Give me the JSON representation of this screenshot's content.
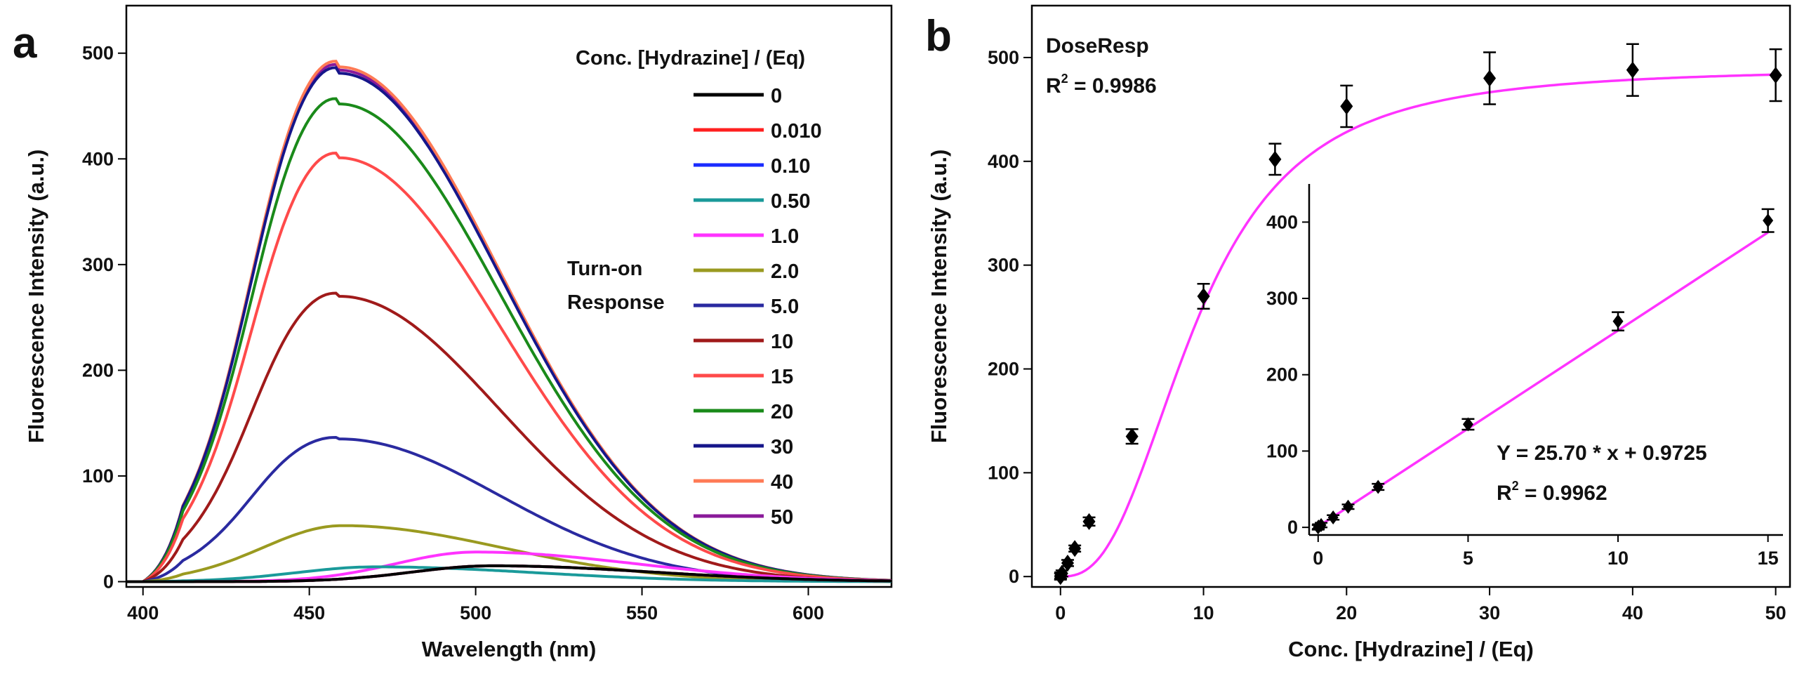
{
  "chart_data": [
    {
      "panel": "a",
      "type": "line",
      "xlabel": "Wavelength (nm)",
      "ylabel": "Fluorescence Intensity (a.u.)",
      "xlim": [
        395,
        625
      ],
      "ylim": [
        -5,
        545
      ],
      "xticks": [
        400,
        450,
        500,
        550,
        600
      ],
      "yticks": [
        0,
        100,
        200,
        300,
        400,
        500
      ],
      "legend_title": "Conc. [Hydrazine] / (Eq)",
      "side_label": [
        "Turn-on",
        "Response"
      ],
      "series": [
        {
          "name": "0",
          "color": "#000000",
          "peak_nm": 505,
          "peak": 15
        },
        {
          "name": "0.010",
          "color": "#ff2020",
          "peak_nm": 505,
          "peak": 15
        },
        {
          "name": "0.10",
          "color": "#1a2bff",
          "peak_nm": 505,
          "peak": 15
        },
        {
          "name": "0.50",
          "color": "#1a9a9a",
          "peak_nm": 470,
          "peak": 14
        },
        {
          "name": "1.0",
          "color": "#ff33ff",
          "peak_nm": 500,
          "peak": 28
        },
        {
          "name": "2.0",
          "color": "#9a9a20",
          "peak_nm": 460,
          "peak": 53
        },
        {
          "name": "5.0",
          "color": "#2a2aa0",
          "peak_nm": 459,
          "peak": 135
        },
        {
          "name": "10",
          "color": "#a01a1a",
          "peak_nm": 459,
          "peak": 270
        },
        {
          "name": "15",
          "color": "#ff4a4a",
          "peak_nm": 459,
          "peak": 401
        },
        {
          "name": "20",
          "color": "#1a8a1a",
          "peak_nm": 459,
          "peak": 452
        },
        {
          "name": "30",
          "color": "#16168a",
          "peak_nm": 459,
          "peak": 481
        },
        {
          "name": "40",
          "color": "#ff7a55",
          "peak_nm": 459,
          "peak": 487
        },
        {
          "name": "50",
          "color": "#8a1a9a",
          "peak_nm": 459,
          "peak": 484
        }
      ]
    },
    {
      "panel": "b",
      "type": "scatter",
      "xlabel": "Conc. [Hydrazine] / (Eq)",
      "ylabel": "Fluorescence Intensity (a.u.)",
      "xlim": [
        -2,
        51
      ],
      "ylim": [
        -10,
        550
      ],
      "xticks": [
        0,
        10,
        20,
        30,
        40,
        50
      ],
      "yticks": [
        0,
        100,
        200,
        300,
        400,
        500
      ],
      "fit_name": "DoseResp",
      "fit_r2_prefix": "R",
      "fit_r2_value": " = 0.9986",
      "fit_color": "#ff33ff",
      "points": [
        {
          "x": 0,
          "y": 0,
          "err": 3
        },
        {
          "x": 0.01,
          "y": 1,
          "err": 3
        },
        {
          "x": 0.1,
          "y": 3,
          "err": 3
        },
        {
          "x": 0.5,
          "y": 13,
          "err": 3
        },
        {
          "x": 1,
          "y": 27,
          "err": 3
        },
        {
          "x": 2,
          "y": 53,
          "err": 4
        },
        {
          "x": 5,
          "y": 135,
          "err": 7
        },
        {
          "x": 10,
          "y": 270,
          "err": 12
        },
        {
          "x": 15,
          "y": 402,
          "err": 15
        },
        {
          "x": 20,
          "y": 453,
          "err": 20
        },
        {
          "x": 30,
          "y": 480,
          "err": 25
        },
        {
          "x": 40,
          "y": 488,
          "err": 25
        },
        {
          "x": 50,
          "y": 483,
          "err": 25
        }
      ],
      "inset": {
        "type": "scatter",
        "xlim": [
          -0.3,
          15.5
        ],
        "ylim": [
          -10,
          450
        ],
        "xticks": [
          0,
          5,
          10,
          15
        ],
        "yticks": [
          0,
          100,
          200,
          300,
          400
        ],
        "fit_eq": "Y = 25.70 * x + 0.9725",
        "fit_r2_prefix": "R",
        "fit_r2_value": " = 0.9962",
        "slope": 25.7,
        "intercept": 0.9725,
        "points": [
          {
            "x": 0,
            "y": 0,
            "err": 3
          },
          {
            "x": 0.01,
            "y": 1,
            "err": 3
          },
          {
            "x": 0.1,
            "y": 3,
            "err": 3
          },
          {
            "x": 0.5,
            "y": 13,
            "err": 3
          },
          {
            "x": 1,
            "y": 27,
            "err": 3
          },
          {
            "x": 2,
            "y": 53,
            "err": 4
          },
          {
            "x": 5,
            "y": 135,
            "err": 7
          },
          {
            "x": 10,
            "y": 270,
            "err": 12
          },
          {
            "x": 15,
            "y": 402,
            "err": 15
          }
        ]
      }
    }
  ]
}
